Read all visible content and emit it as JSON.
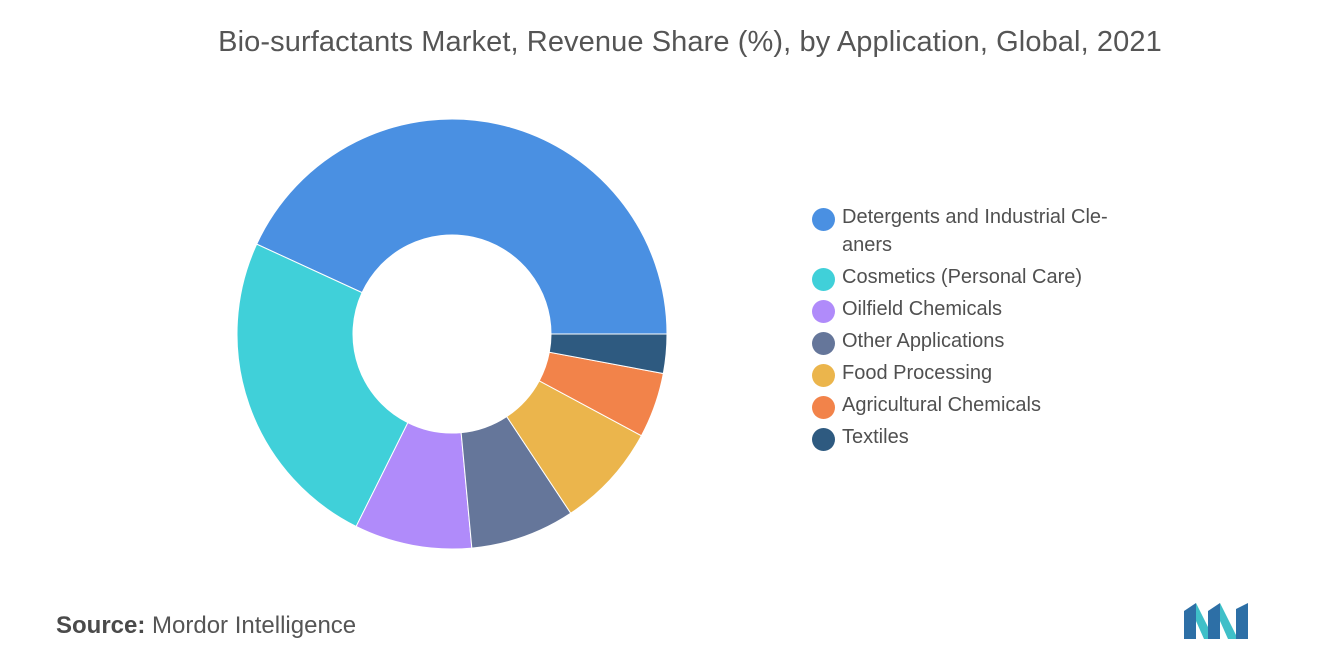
{
  "title": "Bio-surfactants Market, Revenue Share (%), by Application, Global, 2021",
  "source": {
    "label": "Source:",
    "text": "Mordor Intelligence"
  },
  "logo": {
    "icon": "mordor-intelligence-logo",
    "colors": [
      "#2d6fa6",
      "#3fbfc8"
    ]
  },
  "chart_data": {
    "type": "pie",
    "subtype": "donut",
    "title": "Bio-surfactants Market, Revenue Share (%), by Application, Global, 2021",
    "legend_position": "right",
    "categories": [
      "Detergents and Industrial Cle-aners",
      "Cosmetics (Personal Care)",
      "Oilfield Chemicals",
      "Other Applications",
      "Food Processing",
      "Agricultural Chemicals",
      "Textiles"
    ],
    "legend_lines": [
      [
        "Detergents and Industrial Cle-",
        "aners"
      ],
      [
        "Cosmetics (Personal Care)"
      ],
      [
        "Oilfield Chemicals"
      ],
      [
        "Other Applications"
      ],
      [
        "Food Processing"
      ],
      [
        "Agricultural Chemicals"
      ],
      [
        "Textiles"
      ]
    ],
    "values": [
      44,
      25,
      9,
      8,
      8,
      5,
      3
    ],
    "colors": [
      "#4a90e2",
      "#40d0d9",
      "#b08bfa",
      "#65769a",
      "#ebb54c",
      "#f2834a",
      "#2e5a80"
    ]
  }
}
